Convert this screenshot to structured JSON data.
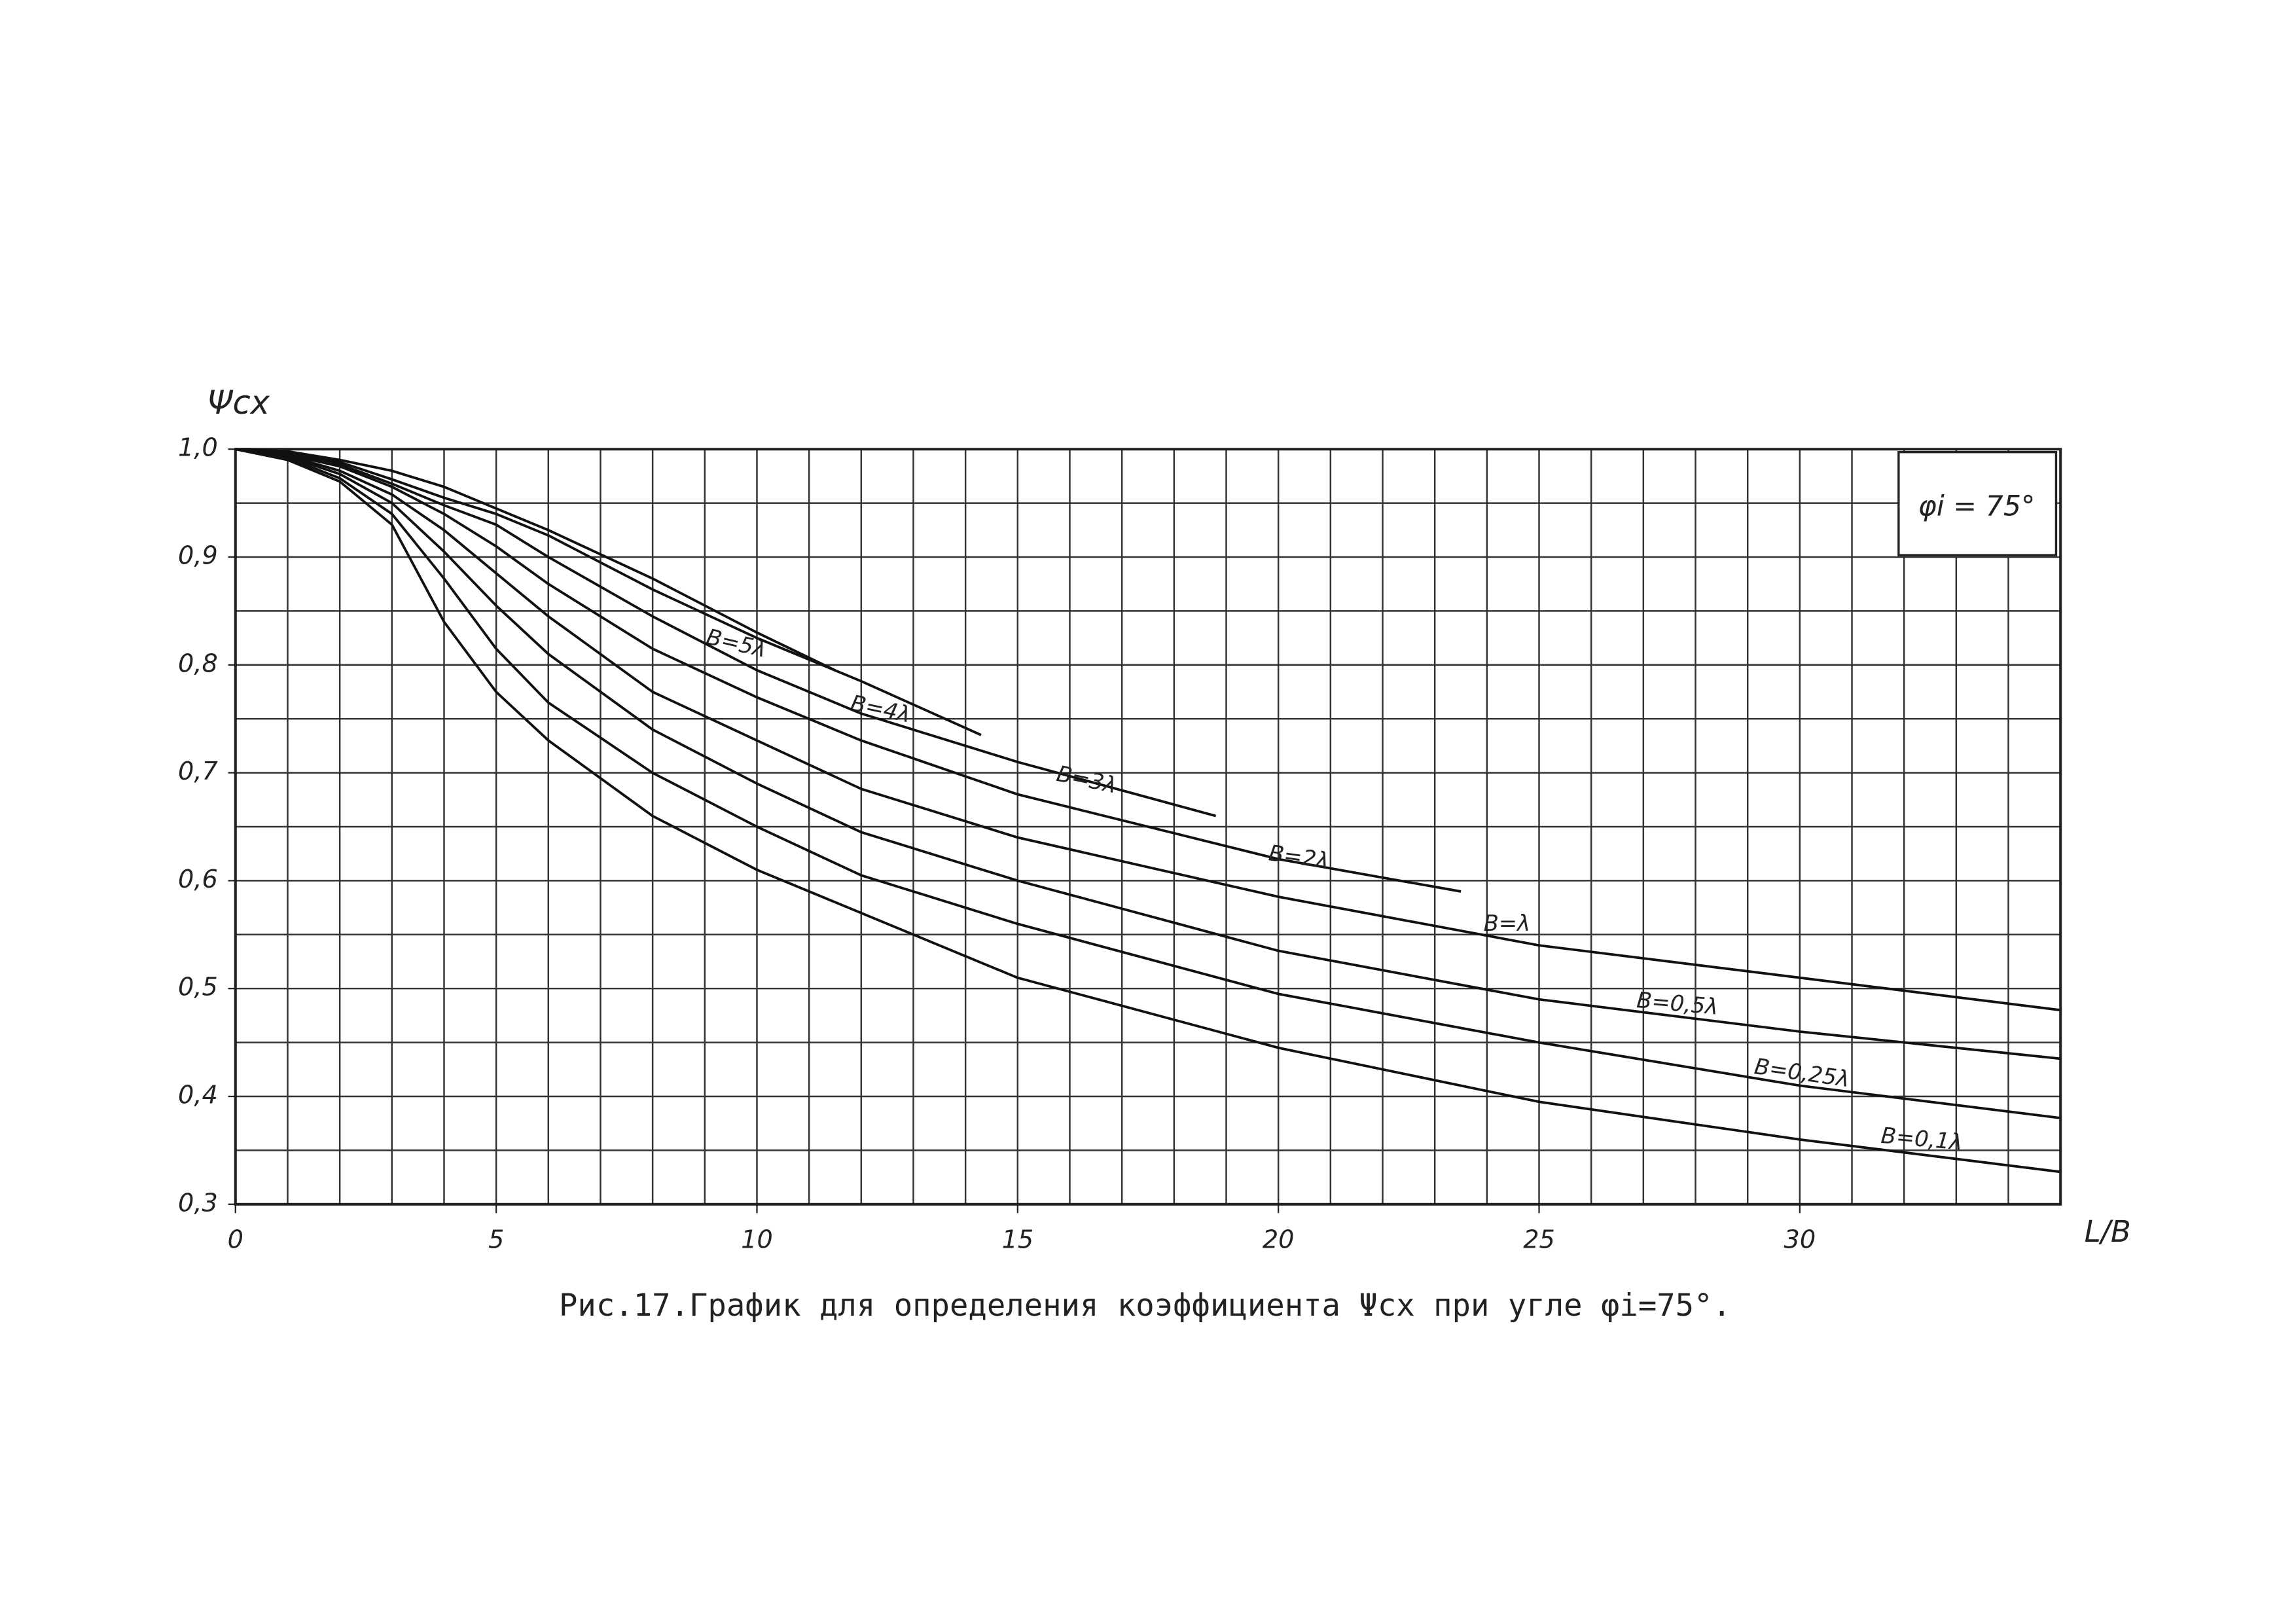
{
  "chart_data": {
    "type": "line",
    "title": "Рис.17.График для определения коэффициента Ψcx при угле φi=75°.",
    "y_label": "Ψcx",
    "x_label": "L/B",
    "annotation": "φi = 75°",
    "xlim": [
      0,
      35
    ],
    "ylim": [
      0.3,
      1.0
    ],
    "xticks": [
      0,
      5,
      10,
      15,
      20,
      25,
      30
    ],
    "yticks": [
      {
        "value": 0.3,
        "label": "0,3"
      },
      {
        "value": 0.4,
        "label": "0,4"
      },
      {
        "value": 0.5,
        "label": "0,5"
      },
      {
        "value": 0.6,
        "label": "0,6"
      },
      {
        "value": 0.7,
        "label": "0,7"
      },
      {
        "value": 0.8,
        "label": "0,8"
      },
      {
        "value": 0.9,
        "label": "0,9"
      },
      {
        "value": 1.0,
        "label": "1,0"
      }
    ],
    "xgrid": [
      0,
      1,
      2,
      3,
      4,
      5,
      6,
      7,
      8,
      9,
      10,
      11,
      12,
      13,
      14,
      15,
      16,
      17,
      18,
      19,
      20,
      21,
      22,
      23,
      24,
      25,
      26,
      27,
      28,
      29,
      30,
      31,
      32,
      33,
      34,
      35
    ],
    "ygrid": [
      0.3,
      0.35,
      0.4,
      0.45,
      0.5,
      0.55,
      0.6,
      0.65,
      0.7,
      0.75,
      0.8,
      0.85,
      0.9,
      0.95,
      1.0
    ],
    "grid": true,
    "series": [
      {
        "name": "B=5λ",
        "color": "#111111",
        "x": [
          0,
          1,
          2,
          3,
          4,
          5,
          6,
          8,
          10,
          11.5
        ],
        "values": [
          1.0,
          0.998,
          0.99,
          0.98,
          0.965,
          0.945,
          0.925,
          0.88,
          0.83,
          0.795
        ]
      },
      {
        "name": "B=4λ",
        "color": "#111111",
        "x": [
          0,
          1,
          2,
          3,
          4,
          5,
          6,
          8,
          10,
          12,
          14.3
        ],
        "values": [
          1.0,
          0.997,
          0.988,
          0.972,
          0.955,
          0.94,
          0.92,
          0.87,
          0.825,
          0.785,
          0.735
        ]
      },
      {
        "name": "B=3λ",
        "color": "#111111",
        "x": [
          0,
          1,
          2,
          3,
          4,
          5,
          6,
          8,
          10,
          12,
          15,
          18.8
        ],
        "values": [
          1.0,
          0.996,
          0.986,
          0.968,
          0.948,
          0.93,
          0.9,
          0.845,
          0.795,
          0.755,
          0.71,
          0.66
        ]
      },
      {
        "name": "B=2λ",
        "color": "#111111",
        "x": [
          0,
          1,
          2,
          3,
          4,
          5,
          6,
          8,
          10,
          12,
          15,
          20,
          23.5
        ],
        "values": [
          1.0,
          0.995,
          0.984,
          0.965,
          0.94,
          0.91,
          0.875,
          0.815,
          0.77,
          0.73,
          0.68,
          0.62,
          0.59
        ]
      },
      {
        "name": "B=λ",
        "color": "#111111",
        "x": [
          0,
          1,
          2,
          3,
          4,
          5,
          6,
          8,
          10,
          12,
          15,
          20,
          25,
          30,
          35
        ],
        "values": [
          1.0,
          0.994,
          0.98,
          0.958,
          0.925,
          0.885,
          0.845,
          0.775,
          0.73,
          0.685,
          0.64,
          0.585,
          0.54,
          0.51,
          0.48
        ]
      },
      {
        "name": "B=0,5λ",
        "color": "#111111",
        "x": [
          0,
          1,
          2,
          3,
          4,
          5,
          6,
          8,
          10,
          12,
          15,
          20,
          25,
          30,
          35
        ],
        "values": [
          1.0,
          0.993,
          0.977,
          0.95,
          0.905,
          0.855,
          0.81,
          0.74,
          0.69,
          0.645,
          0.6,
          0.535,
          0.49,
          0.46,
          0.435
        ]
      },
      {
        "name": "B=0,25λ",
        "color": "#111111",
        "x": [
          0,
          1,
          2,
          3,
          4,
          5,
          6,
          8,
          10,
          12,
          15,
          20,
          25,
          30,
          35
        ],
        "values": [
          1.0,
          0.992,
          0.973,
          0.94,
          0.88,
          0.815,
          0.765,
          0.7,
          0.65,
          0.605,
          0.56,
          0.495,
          0.45,
          0.41,
          0.38
        ]
      },
      {
        "name": "B=0,1λ",
        "color": "#111111",
        "x": [
          0,
          1,
          2,
          3,
          4,
          5,
          6,
          8,
          10,
          12,
          15,
          20,
          25,
          30,
          35
        ],
        "values": [
          1.0,
          0.99,
          0.97,
          0.93,
          0.84,
          0.775,
          0.73,
          0.66,
          0.61,
          0.57,
          0.51,
          0.445,
          0.395,
          0.36,
          0.33
        ]
      }
    ]
  }
}
